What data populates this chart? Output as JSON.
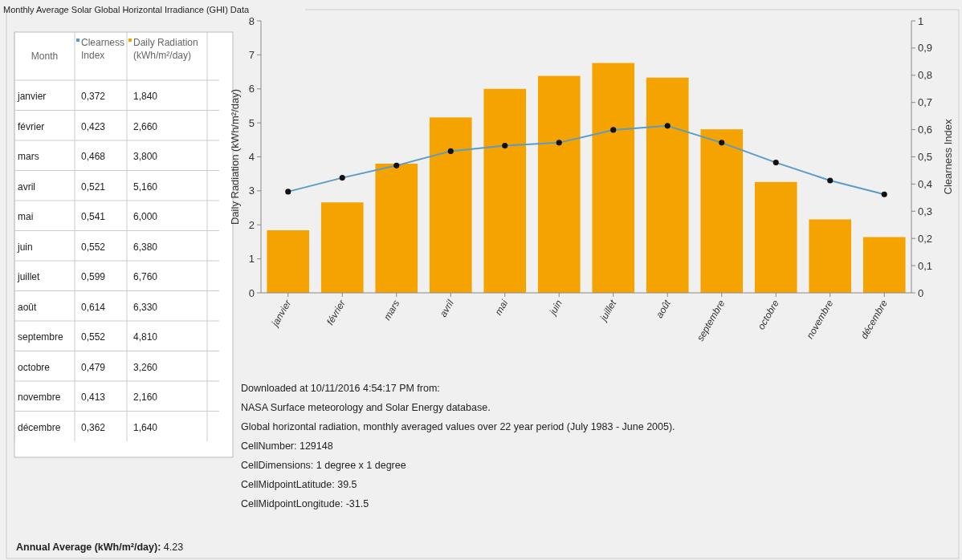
{
  "chart_data": {
    "type": "bar",
    "title": "Monthly Average Solar Global Horizontal Irradiance (GHI) Data",
    "legend": "top left",
    "ylabel": "Daily Radiation (kWh/m²/day)",
    "y2label": "Clearness Index",
    "categories": [
      "janvier",
      "février",
      "mars",
      "avril",
      "mai",
      "juin",
      "juillet",
      "août",
      "septembre",
      "octobre",
      "novembre",
      "décembre"
    ],
    "series": [
      {
        "name": "Clearness Index",
        "type": "line",
        "axis": "y2",
        "color": "#5b9bc8",
        "values": [
          0.372,
          0.423,
          0.468,
          0.521,
          0.541,
          0.552,
          0.599,
          0.614,
          0.552,
          0.479,
          0.413,
          0.362
        ]
      },
      {
        "name": "Daily Radiation (kWh/m²/day)",
        "color": "#f5a300",
        "values": [
          1.84,
          2.66,
          3.8,
          5.16,
          6.0,
          6.38,
          6.76,
          6.33,
          4.81,
          3.26,
          2.16,
          1.64
        ]
      }
    ],
    "ylim": [
      0,
      8
    ],
    "yticks": [
      0,
      1,
      2,
      3,
      4,
      5,
      6,
      7,
      8
    ],
    "y2lim": [
      0,
      1
    ],
    "y2ticks": [
      0,
      {
        "value": 0.1,
        "label": "0,1"
      },
      {
        "value": 0.2,
        "label": "0,2"
      },
      {
        "value": 0.3,
        "label": "0,3"
      },
      {
        "value": 0.4,
        "label": "0,4"
      },
      {
        "value": 0.5,
        "label": "0,5"
      },
      {
        "value": 0.6,
        "label": "0,6"
      },
      {
        "value": 0.7,
        "label": "0,7"
      },
      {
        "value": 0.8,
        "label": "0,8"
      },
      {
        "value": 0.9,
        "label": "0,9"
      },
      1
    ],
    "marker": "circle",
    "grid": false,
    "annotations": [
      "Month",
      "0,372",
      "1,840",
      "0,423",
      "2,660",
      "0,468",
      "3,800",
      "0,521",
      "5,160",
      "0,541",
      "6,000",
      "0,552",
      "6,380",
      "0,599",
      "6,760",
      "0,614",
      "6,330",
      "0,552",
      "4,810",
      "0,479",
      "3,260",
      "0,413",
      "2,160",
      "0,362",
      "1,640",
      "Downloaded at 10/11/2016 4:54:17 PM from:",
      "NASA Surface meteorology and Solar Energy database.",
      "Global horizontal radiation, monthly averaged values over 22 year period (July 1983 - June 2005).",
      "CellNumber: 129148",
      "CellDimensions: 1 degree x 1 degree",
      "CellMidpointLatitude: 39.5",
      "CellMidpointLongitude: -31.5",
      "Annual Average (kWh/m²/day): 4.23"
    ]
  }
}
